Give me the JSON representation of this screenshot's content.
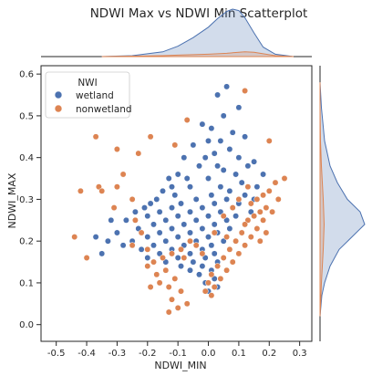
{
  "chart_data": {
    "type": "scatter",
    "title": "NDWI Max vs NDWI Min Scatterplot",
    "xlabel": "NDWI_MIN",
    "ylabel": "NDWI_MAX",
    "xlim": [
      -0.55,
      0.34
    ],
    "ylim": [
      -0.04,
      0.62
    ],
    "x_ticks": [
      -0.5,
      -0.4,
      -0.3,
      -0.2,
      -0.1,
      0.0,
      0.1,
      0.2,
      0.3
    ],
    "x_tick_labels": [
      "-0.5",
      "-0.4",
      "-0.3",
      "-0.2",
      "-0.1",
      "0.0",
      "0.1",
      "0.2",
      "0.3"
    ],
    "y_ticks": [
      0.0,
      0.1,
      0.2,
      0.3,
      0.4,
      0.5,
      0.6
    ],
    "y_tick_labels": [
      "0.0",
      "0.1",
      "0.2",
      "0.3",
      "0.4",
      "0.5",
      "0.6"
    ],
    "grid": false,
    "legend": {
      "title": "NWI",
      "placement": "top-left",
      "entries": [
        "wetland",
        "nonwetland"
      ]
    },
    "colors": {
      "wetland": "#4c72b0",
      "nonwetland": "#dd8452"
    },
    "marginals": "kde",
    "series": [
      {
        "name": "wetland",
        "color": "#4c72b0",
        "points": [
          [
            0.06,
            0.57
          ],
          [
            0.03,
            0.55
          ],
          [
            0.1,
            0.52
          ],
          [
            0.05,
            0.5
          ],
          [
            -0.02,
            0.48
          ],
          [
            0.01,
            0.47
          ],
          [
            0.08,
            0.46
          ],
          [
            0.12,
            0.45
          ],
          [
            0.0,
            0.44
          ],
          [
            0.04,
            0.44
          ],
          [
            -0.05,
            0.43
          ],
          [
            0.07,
            0.42
          ],
          [
            0.02,
            0.41
          ],
          [
            -0.08,
            0.4
          ],
          [
            0.1,
            0.4
          ],
          [
            0.13,
            0.38
          ],
          [
            -0.03,
            0.38
          ],
          [
            0.05,
            0.37
          ],
          [
            -0.1,
            0.36
          ],
          [
            0.09,
            0.36
          ],
          [
            -0.13,
            0.35
          ],
          [
            0.0,
            0.35
          ],
          [
            0.11,
            0.34
          ],
          [
            -0.06,
            0.33
          ],
          [
            0.04,
            0.33
          ],
          [
            -0.15,
            0.32
          ],
          [
            0.07,
            0.32
          ],
          [
            -0.11,
            0.31
          ],
          [
            0.01,
            0.31
          ],
          [
            0.12,
            0.31
          ],
          [
            -0.17,
            0.3
          ],
          [
            -0.04,
            0.3
          ],
          [
            0.06,
            0.3
          ],
          [
            -0.19,
            0.29
          ],
          [
            -0.09,
            0.29
          ],
          [
            0.02,
            0.29
          ],
          [
            0.1,
            0.29
          ],
          [
            -0.21,
            0.28
          ],
          [
            -0.12,
            0.28
          ],
          [
            -0.02,
            0.28
          ],
          [
            0.08,
            0.28
          ],
          [
            -0.24,
            0.27
          ],
          [
            -0.16,
            0.27
          ],
          [
            -0.06,
            0.27
          ],
          [
            0.04,
            0.27
          ],
          [
            -0.2,
            0.26
          ],
          [
            -0.1,
            0.26
          ],
          [
            0.0,
            0.26
          ],
          [
            0.09,
            0.26
          ],
          [
            -0.27,
            0.25
          ],
          [
            -0.14,
            0.25
          ],
          [
            -0.04,
            0.25
          ],
          [
            0.06,
            0.25
          ],
          [
            -0.18,
            0.24
          ],
          [
            -0.08,
            0.24
          ],
          [
            0.02,
            0.24
          ],
          [
            -0.23,
            0.23
          ],
          [
            -0.12,
            0.23
          ],
          [
            -0.02,
            0.23
          ],
          [
            0.07,
            0.23
          ],
          [
            -0.3,
            0.22
          ],
          [
            -0.16,
            0.22
          ],
          [
            -0.06,
            0.22
          ],
          [
            0.03,
            0.22
          ],
          [
            -0.2,
            0.21
          ],
          [
            -0.1,
            0.21
          ],
          [
            0.0,
            0.21
          ],
          [
            -0.33,
            0.2
          ],
          [
            -0.25,
            0.2
          ],
          [
            -0.14,
            0.2
          ],
          [
            -0.04,
            0.2
          ],
          [
            0.05,
            0.2
          ],
          [
            -0.28,
            0.19
          ],
          [
            -0.18,
            0.19
          ],
          [
            -0.08,
            0.19
          ],
          [
            0.01,
            0.19
          ],
          [
            -0.22,
            0.18
          ],
          [
            -0.12,
            0.18
          ],
          [
            -0.02,
            0.18
          ],
          [
            -0.35,
            0.17
          ],
          [
            -0.16,
            0.17
          ],
          [
            -0.06,
            0.17
          ],
          [
            0.02,
            0.17
          ],
          [
            -0.2,
            0.16
          ],
          [
            -0.1,
            0.16
          ],
          [
            -0.01,
            0.16
          ],
          [
            -0.14,
            0.15
          ],
          [
            -0.05,
            0.15
          ],
          [
            0.03,
            0.15
          ],
          [
            -0.09,
            0.14
          ],
          [
            -0.02,
            0.14
          ],
          [
            -0.06,
            0.13
          ],
          [
            0.01,
            0.13
          ],
          [
            -0.03,
            0.12
          ],
          [
            0.02,
            0.11
          ],
          [
            -0.01,
            0.1
          ],
          [
            0.03,
            0.09
          ],
          [
            0.0,
            0.08
          ],
          [
            -0.37,
            0.21
          ],
          [
            -0.32,
            0.25
          ],
          [
            0.15,
            0.39
          ],
          [
            0.16,
            0.33
          ],
          [
            0.14,
            0.27
          ],
          [
            0.15,
            0.3
          ],
          [
            0.12,
            0.24
          ],
          [
            0.18,
            0.36
          ],
          [
            -0.07,
            0.35
          ],
          [
            -0.01,
            0.4
          ],
          [
            0.03,
            0.38
          ],
          [
            -0.12,
            0.33
          ]
        ]
      },
      {
        "name": "nonwetland",
        "color": "#dd8452",
        "points": [
          [
            0.12,
            0.56
          ],
          [
            -0.07,
            0.49
          ],
          [
            -0.37,
            0.45
          ],
          [
            -0.19,
            0.45
          ],
          [
            0.2,
            0.44
          ],
          [
            -0.3,
            0.42
          ],
          [
            -0.23,
            0.41
          ],
          [
            -0.11,
            0.43
          ],
          [
            0.25,
            0.35
          ],
          [
            -0.28,
            0.36
          ],
          [
            -0.36,
            0.33
          ],
          [
            -0.3,
            0.33
          ],
          [
            -0.35,
            0.32
          ],
          [
            -0.25,
            0.3
          ],
          [
            0.22,
            0.34
          ],
          [
            0.2,
            0.32
          ],
          [
            0.18,
            0.31
          ],
          [
            0.16,
            0.3
          ],
          [
            0.14,
            0.29
          ],
          [
            0.19,
            0.28
          ],
          [
            0.17,
            0.27
          ],
          [
            0.15,
            0.26
          ],
          [
            0.13,
            0.25
          ],
          [
            0.18,
            0.25
          ],
          [
            0.12,
            0.24
          ],
          [
            0.16,
            0.23
          ],
          [
            0.11,
            0.22
          ],
          [
            0.14,
            0.21
          ],
          [
            0.09,
            0.2
          ],
          [
            0.12,
            0.19
          ],
          [
            0.07,
            0.18
          ],
          [
            0.1,
            0.17
          ],
          [
            0.05,
            0.16
          ],
          [
            0.08,
            0.15
          ],
          [
            0.03,
            0.14
          ],
          [
            0.06,
            0.13
          ],
          [
            0.01,
            0.12
          ],
          [
            0.04,
            0.11
          ],
          [
            0.0,
            0.1
          ],
          [
            0.02,
            0.09
          ],
          [
            -0.01,
            0.08
          ],
          [
            0.01,
            0.07
          ],
          [
            -0.06,
            0.2
          ],
          [
            -0.04,
            0.19
          ],
          [
            -0.09,
            0.18
          ],
          [
            -0.12,
            0.17
          ],
          [
            -0.15,
            0.16
          ],
          [
            -0.18,
            0.15
          ],
          [
            -0.08,
            0.16
          ],
          [
            -0.2,
            0.14
          ],
          [
            -0.14,
            0.13
          ],
          [
            -0.17,
            0.12
          ],
          [
            -0.11,
            0.11
          ],
          [
            -0.13,
            0.09
          ],
          [
            -0.09,
            0.08
          ],
          [
            -0.12,
            0.06
          ],
          [
            -0.1,
            0.04
          ],
          [
            -0.13,
            0.03
          ],
          [
            -0.07,
            0.05
          ],
          [
            -0.16,
            0.1
          ],
          [
            -0.2,
            0.18
          ],
          [
            -0.22,
            0.22
          ],
          [
            -0.25,
            0.19
          ],
          [
            -0.44,
            0.21
          ],
          [
            -0.4,
            0.16
          ],
          [
            -0.42,
            0.32
          ],
          [
            -0.31,
            0.28
          ],
          [
            -0.24,
            0.25
          ],
          [
            -0.19,
            0.09
          ],
          [
            0.23,
            0.3
          ],
          [
            0.21,
            0.27
          ],
          [
            0.19,
            0.22
          ],
          [
            0.17,
            0.2
          ],
          [
            0.1,
            0.3
          ],
          [
            0.08,
            0.28
          ],
          [
            0.05,
            0.26
          ],
          [
            0.02,
            0.22
          ],
          [
            -0.02,
            0.17
          ],
          [
            0.13,
            0.33
          ],
          [
            0.06,
            0.21
          ]
        ]
      }
    ],
    "marginal_x_kde": {
      "x": [
        -0.35,
        -0.25,
        -0.15,
        -0.1,
        -0.05,
        0.0,
        0.03,
        0.06,
        0.08,
        0.1,
        0.12,
        0.15,
        0.18,
        0.22,
        0.28
      ],
      "wetland": [
        0.0,
        0.02,
        0.1,
        0.22,
        0.4,
        0.62,
        0.8,
        0.95,
        1.0,
        0.97,
        0.82,
        0.5,
        0.2,
        0.05,
        0.0
      ],
      "nonwetland": [
        0.0,
        0.01,
        0.02,
        0.03,
        0.04,
        0.05,
        0.06,
        0.07,
        0.08,
        0.09,
        0.1,
        0.09,
        0.06,
        0.02,
        0.0
      ]
    },
    "marginal_y_kde": {
      "y": [
        0.02,
        0.07,
        0.1,
        0.14,
        0.18,
        0.21,
        0.24,
        0.27,
        0.3,
        0.34,
        0.38,
        0.44,
        0.52,
        0.58
      ],
      "wetland": [
        0.0,
        0.04,
        0.1,
        0.22,
        0.42,
        0.7,
        0.98,
        0.88,
        0.6,
        0.38,
        0.22,
        0.1,
        0.03,
        0.0
      ],
      "nonwetland": [
        0.0,
        0.02,
        0.03,
        0.05,
        0.07,
        0.08,
        0.09,
        0.08,
        0.07,
        0.05,
        0.03,
        0.01,
        0.0,
        0.0
      ]
    }
  }
}
